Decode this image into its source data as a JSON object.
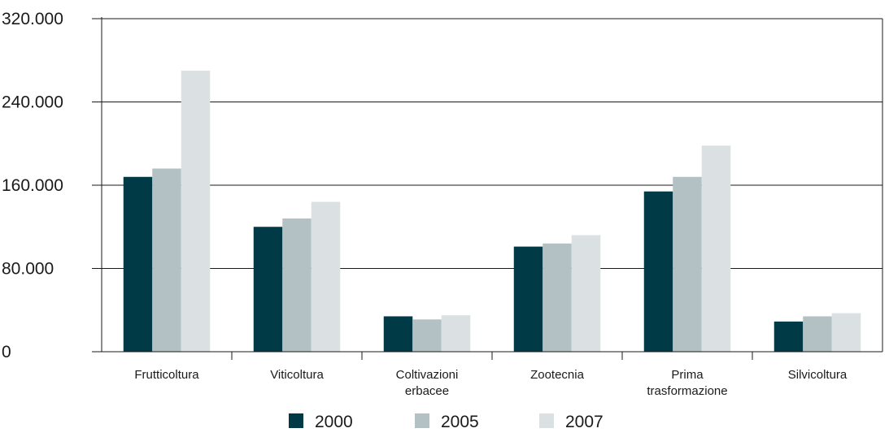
{
  "chart_data": {
    "type": "bar",
    "categories": [
      [
        "Frutticoltura"
      ],
      [
        "Viticoltura"
      ],
      [
        "Coltivazioni",
        "erbacee"
      ],
      [
        "Zootecnia"
      ],
      [
        "Prima",
        "trasformazione"
      ],
      [
        "Silvicoltura"
      ]
    ],
    "series": [
      {
        "name": "2000",
        "color": "#003a47",
        "values": [
          168000,
          120000,
          34000,
          101000,
          154000,
          29000
        ]
      },
      {
        "name": "2005",
        "color": "#b3c1c5",
        "values": [
          176000,
          128000,
          31000,
          104000,
          168000,
          34000
        ]
      },
      {
        "name": "2007",
        "color": "#dbe1e3",
        "values": [
          270000,
          144000,
          35000,
          112000,
          198000,
          37000
        ]
      }
    ],
    "yticks": [
      "0",
      "80.000",
      "160.000",
      "240.000",
      "320.000"
    ],
    "ytick_values": [
      0,
      80000,
      160000,
      240000,
      320000
    ],
    "ylim": [
      0,
      320000
    ],
    "grid": true,
    "legend_position": "bottom"
  }
}
